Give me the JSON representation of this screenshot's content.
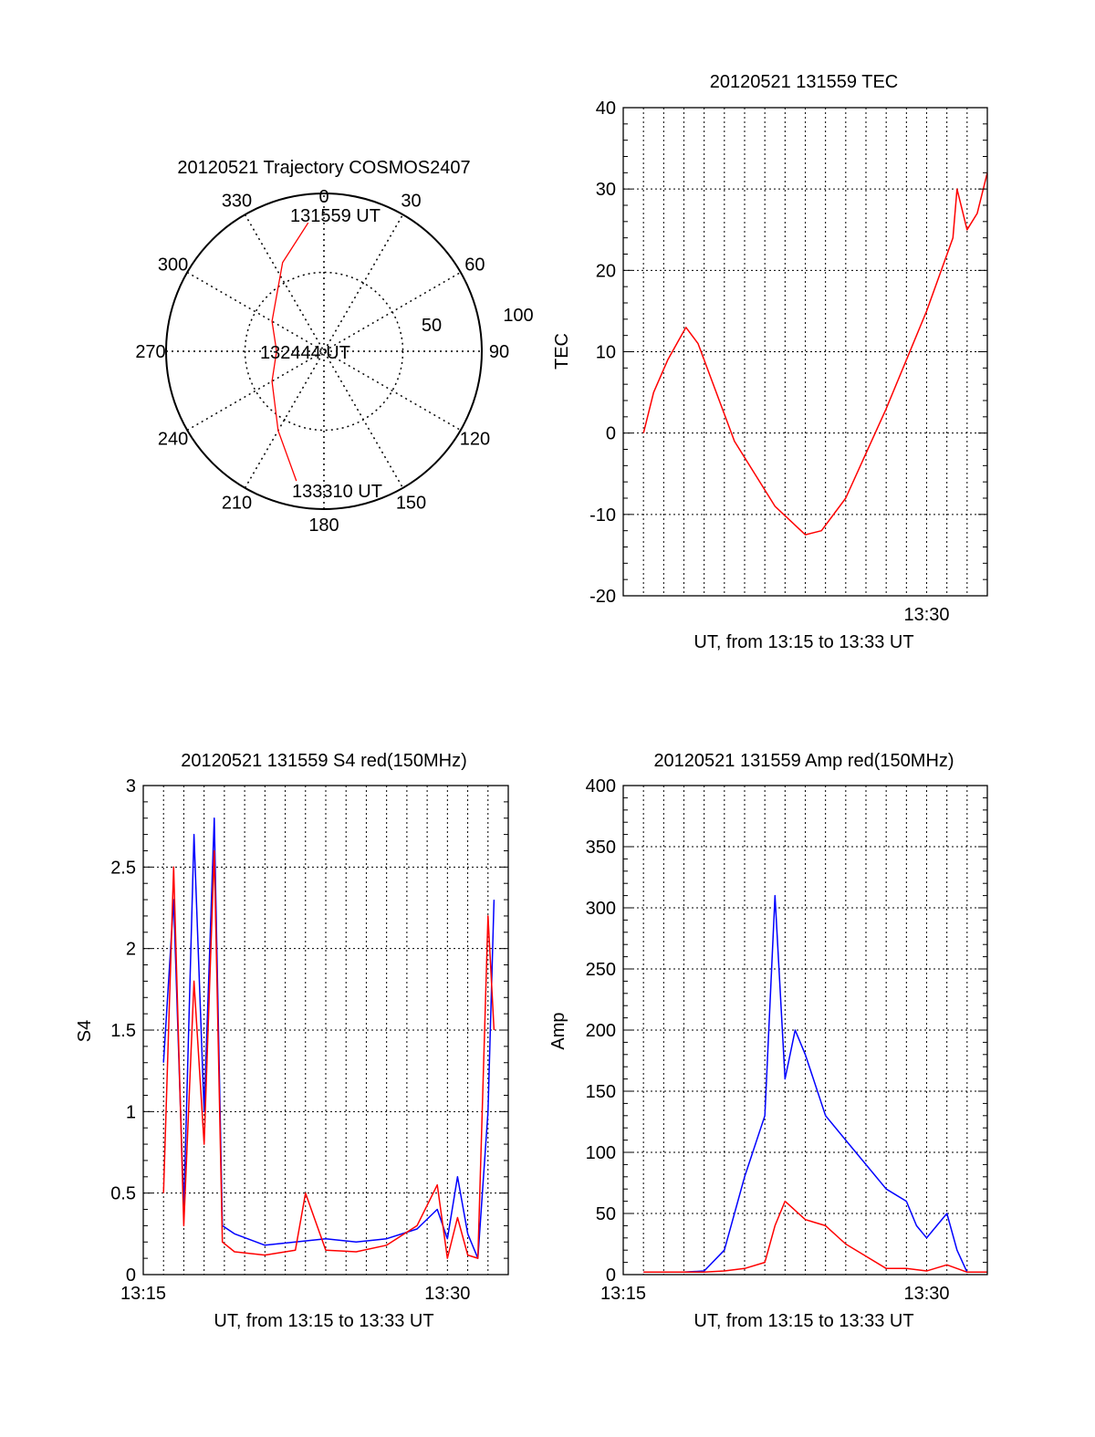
{
  "chart_data": [
    {
      "type": "polar",
      "title": "20120521 Trajectory COSMOS2407",
      "azimuth_labels": [
        "0",
        "30",
        "60",
        "90",
        "120",
        "150",
        "180",
        "210",
        "240",
        "270",
        "300",
        "330"
      ],
      "radial_labels": [
        "50",
        "100"
      ],
      "rlim": [
        0,
        100
      ],
      "series": [
        {
          "color": "#ff0000",
          "points": [
            {
              "az": 353,
              "el": 82
            },
            {
              "az": 335,
              "el": 62
            },
            {
              "az": 300,
              "el": 38
            },
            {
              "az": 270,
              "el": 30
            },
            {
              "az": 240,
              "el": 38
            },
            {
              "az": 210,
              "el": 58
            },
            {
              "az": 192,
              "el": 84
            }
          ]
        }
      ],
      "annotations": [
        {
          "text": "131559 UT",
          "az": 0,
          "r": 82
        },
        {
          "text": "132444 UT",
          "az": 270,
          "r": 0
        },
        {
          "text": "133310 UT",
          "az": 180,
          "r": 86
        }
      ]
    },
    {
      "type": "line",
      "title": "20120521 131559 TEC",
      "xlabel": "UT, from 13:15 to 13:33 UT",
      "ylabel": "TEC",
      "xlim": [
        0,
        18
      ],
      "ylim": [
        -20,
        40
      ],
      "yticks": [
        "40",
        "30",
        "20",
        "10",
        "0",
        "-10",
        "-20"
      ],
      "xtick_labels": [
        {
          "x": 15,
          "label": "13:30"
        }
      ],
      "grid": true,
      "series": [
        {
          "color": "#ff0000",
          "x": [
            1.0,
            1.5,
            2.2,
            3.1,
            3.7,
            5.5,
            7.5,
            9.0,
            9.8,
            11.0,
            13.0,
            15.0,
            16.3,
            16.5,
            17.0,
            17.5,
            18.0
          ],
          "y": [
            0,
            5,
            9,
            13,
            11,
            -1,
            -9,
            -12.5,
            -12,
            -8,
            3,
            15,
            24,
            30,
            25,
            27,
            32
          ]
        }
      ]
    },
    {
      "type": "line",
      "title": "20120521 131559 S4 red(150MHz)",
      "xlabel": "UT, from 13:15 to 13:33 UT",
      "ylabel": "S4",
      "xlim": [
        0,
        18
      ],
      "ylim": [
        0,
        3
      ],
      "yticks": [
        "3",
        "2.5",
        "2",
        "1.5",
        "1",
        "0.5",
        "0"
      ],
      "xtick_labels": [
        {
          "x": 0,
          "label": "13:15"
        },
        {
          "x": 15,
          "label": "13:30"
        }
      ],
      "grid": true,
      "series": [
        {
          "color": "#0000ff",
          "x": [
            1.0,
            1.5,
            2.0,
            2.5,
            3.0,
            3.5,
            3.9,
            4.5,
            6.0,
            7.5,
            9.0,
            10.5,
            12.0,
            13.5,
            14.5,
            15.0,
            15.5,
            16.0,
            16.5,
            17.0,
            17.3
          ],
          "y": [
            1.3,
            2.3,
            0.4,
            2.7,
            1.0,
            2.8,
            0.3,
            0.25,
            0.18,
            0.2,
            0.22,
            0.2,
            0.22,
            0.28,
            0.4,
            0.22,
            0.6,
            0.25,
            0.1,
            1.0,
            2.3
          ]
        },
        {
          "color": "#ff0000",
          "x": [
            1.0,
            1.5,
            2.0,
            2.5,
            3.0,
            3.5,
            3.9,
            4.5,
            6.0,
            7.5,
            8.0,
            9.0,
            10.5,
            12.0,
            13.5,
            14.5,
            15.0,
            15.5,
            16.0,
            16.5,
            17.0,
            17.3
          ],
          "y": [
            0.5,
            2.5,
            0.3,
            1.8,
            0.8,
            2.6,
            0.2,
            0.14,
            0.12,
            0.15,
            0.5,
            0.15,
            0.14,
            0.18,
            0.3,
            0.55,
            0.1,
            0.35,
            0.12,
            0.1,
            2.2,
            1.5
          ]
        }
      ]
    },
    {
      "type": "line",
      "title": "20120521 131559 Amp red(150MHz)",
      "xlabel": "UT, from 13:15 to 13:33 UT",
      "ylabel": "Amp",
      "xlim": [
        0,
        18
      ],
      "ylim": [
        0,
        400
      ],
      "yticks": [
        "400",
        "350",
        "300",
        "250",
        "200",
        "150",
        "100",
        "50",
        "0"
      ],
      "xtick_labels": [
        {
          "x": 0,
          "label": "13:15"
        },
        {
          "x": 15,
          "label": "13:30"
        }
      ],
      "grid": true,
      "series": [
        {
          "color": "#0000ff",
          "x": [
            1.0,
            3.0,
            4.0,
            5.0,
            6.0,
            7.0,
            7.5,
            8.0,
            8.5,
            9.0,
            10.0,
            11.0,
            12.0,
            13.0,
            14.0,
            14.5,
            15.0,
            16.0,
            16.5,
            17.0,
            18.0
          ],
          "y": [
            2,
            2,
            3,
            20,
            80,
            130,
            310,
            160,
            200,
            180,
            130,
            110,
            90,
            70,
            60,
            40,
            30,
            50,
            20,
            2,
            2
          ]
        },
        {
          "color": "#ff0000",
          "x": [
            1.0,
            3.0,
            4.0,
            5.0,
            6.0,
            7.0,
            7.5,
            8.0,
            9.0,
            10.0,
            11.0,
            12.0,
            13.0,
            14.0,
            15.0,
            16.0,
            17.0,
            18.0
          ],
          "y": [
            2,
            2,
            2,
            3,
            5,
            10,
            40,
            60,
            45,
            40,
            25,
            15,
            5,
            5,
            3,
            8,
            2,
            2
          ]
        }
      ]
    }
  ]
}
